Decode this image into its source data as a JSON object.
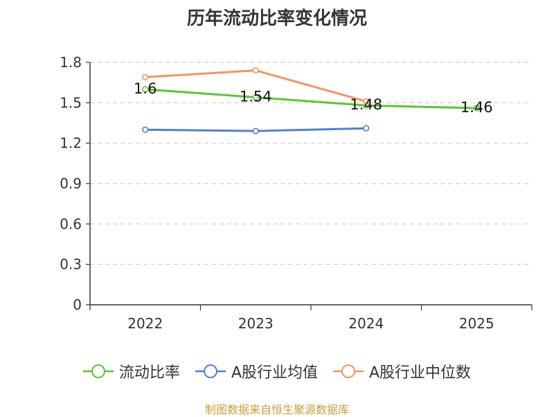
{
  "chart_data": {
    "type": "line",
    "title": "历年流动比率变化情况",
    "categories": [
      "2022",
      "2023",
      "2024",
      "2025"
    ],
    "y_ticks": [
      "0",
      "0.3",
      "0.6",
      "0.9",
      "1.2",
      "1.5",
      "1.8"
    ],
    "ylim": [
      0,
      1.8
    ],
    "grid": true,
    "legend_position": "bottom",
    "series": [
      {
        "name": "流动比率",
        "values": [
          1.6,
          1.54,
          1.48,
          1.46
        ],
        "labels": [
          "1.6",
          "1.54",
          "1.48",
          "1.46"
        ],
        "color": "#5cc531"
      },
      {
        "name": "A股行业均值",
        "values": [
          1.3,
          1.29,
          1.31,
          null
        ],
        "color": "#4f7fda"
      },
      {
        "name": "A股行业中位数",
        "values": [
          1.69,
          1.74,
          1.51,
          null
        ],
        "color": "#f7935d"
      }
    ]
  },
  "footer": {
    "source": "制图数据来自恒生聚源数据库"
  }
}
